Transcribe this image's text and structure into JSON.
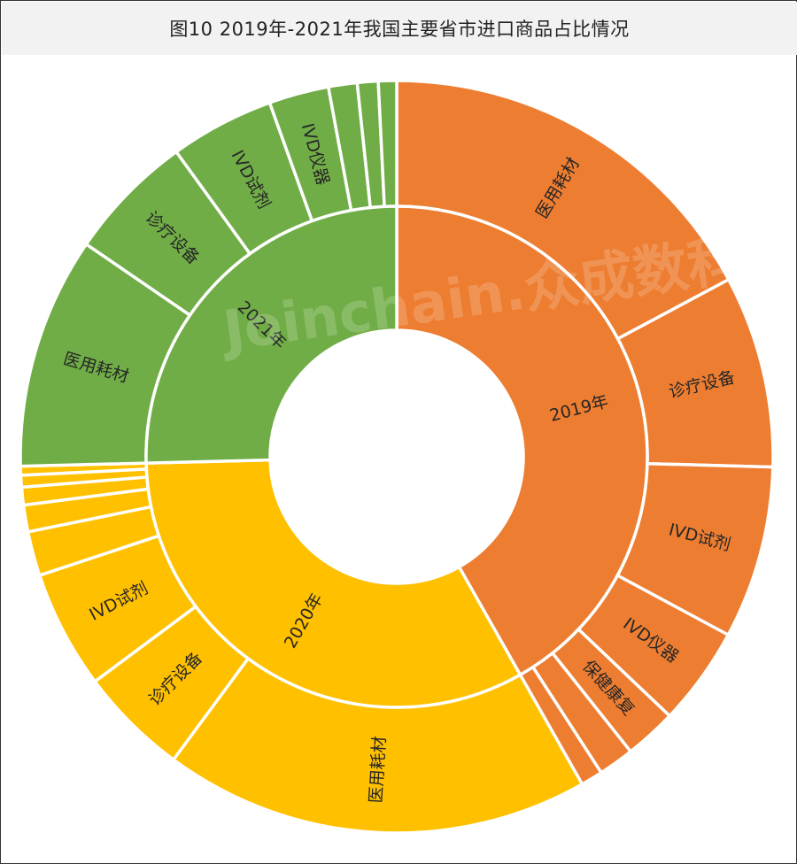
{
  "title": "图10  2019年-2021年我国主要省市进口商品占比情况",
  "watermark": "Joinchain.众成数科",
  "chart_data": {
    "type": "sunburst",
    "title": "图10  2019年-2021年我国主要省市进口商品占比情况",
    "colors": {
      "2019年": "#ED7D31",
      "2020年": "#FFC000",
      "2021年": "#70AD47"
    },
    "years": [
      {
        "name": "2019年",
        "value": 41.8,
        "children": [
          {
            "name": "医用耗材",
            "value": 14.6
          },
          {
            "name": "诊疗设备",
            "value": 7.0
          },
          {
            "name": "IVD试剂",
            "value": 6.3
          },
          {
            "name": "IVD仪器",
            "value": 3.6
          },
          {
            "name": "保健康复",
            "value": 1.9
          },
          {
            "name": "",
            "value": 1.3
          },
          {
            "name": "",
            "value": 0.8
          }
        ]
      },
      {
        "name": "2020年",
        "value": 32.8,
        "children": [
          {
            "name": "医用耗材",
            "value": 14.4
          },
          {
            "name": "诊疗设备",
            "value": 3.7
          },
          {
            "name": "IVD试剂",
            "value": 4.0
          },
          {
            "name": "",
            "value": 1.5
          },
          {
            "name": "",
            "value": 0.9
          },
          {
            "name": "",
            "value": 0.6
          },
          {
            "name": "",
            "value": 0.4
          },
          {
            "name": "",
            "value": 0.3
          }
        ]
      },
      {
        "name": "2021年",
        "value": 25.4,
        "children": [
          {
            "name": "医用耗材",
            "value": 8.9
          },
          {
            "name": "诊疗设备",
            "value": 4.9
          },
          {
            "name": "IVD试剂",
            "value": 4.0
          },
          {
            "name": "IVD仪器",
            "value": 2.3
          },
          {
            "name": "",
            "value": 1.1
          },
          {
            "name": "",
            "value": 0.8
          },
          {
            "name": "",
            "value": 0.7
          }
        ]
      }
    ]
  }
}
